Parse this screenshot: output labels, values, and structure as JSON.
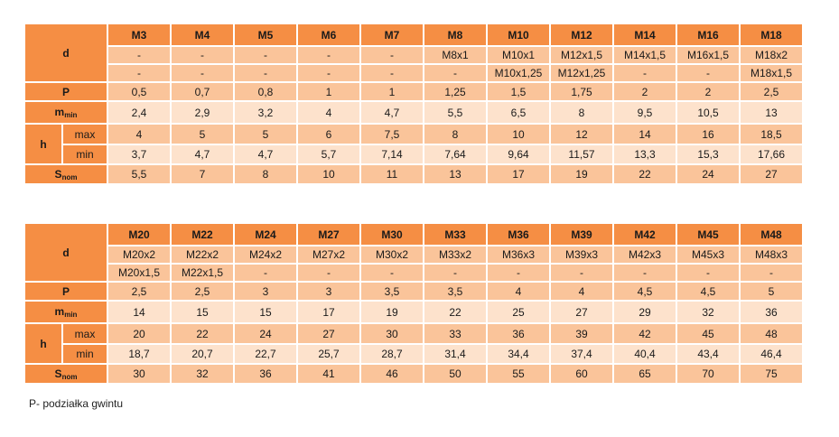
{
  "table1": {
    "labels": {
      "d": "d",
      "P": "P",
      "m": "m",
      "m_sub": "min",
      "h": "h",
      "h_max": "max",
      "h_min": "min",
      "s": "S",
      "s_sub": "nom"
    },
    "sizes": [
      "M3",
      "M4",
      "M5",
      "M6",
      "M7",
      "M8",
      "M10",
      "M12",
      "M14",
      "M16",
      "M18"
    ],
    "fine1": [
      "-",
      "-",
      "-",
      "-",
      "-",
      "M8x1",
      "M10x1",
      "M12x1,5",
      "M14x1,5",
      "M16x1,5",
      "M18x2"
    ],
    "fine2": [
      "-",
      "-",
      "-",
      "-",
      "-",
      "-",
      "M10x1,25",
      "M12x1,25",
      "-",
      "-",
      "M18x1,5"
    ],
    "P": [
      "0,5",
      "0,7",
      "0,8",
      "1",
      "1",
      "1,25",
      "1,5",
      "1,75",
      "2",
      "2",
      "2,5"
    ],
    "m_min": [
      "2,4",
      "2,9",
      "3,2",
      "4",
      "4,7",
      "5,5",
      "6,5",
      "8",
      "9,5",
      "10,5",
      "13"
    ],
    "h_max": [
      "4",
      "5",
      "5",
      "6",
      "7,5",
      "8",
      "10",
      "12",
      "14",
      "16",
      "18,5"
    ],
    "h_min": [
      "3,7",
      "4,7",
      "4,7",
      "5,7",
      "7,14",
      "7,64",
      "9,64",
      "11,57",
      "13,3",
      "15,3",
      "17,66"
    ],
    "s_nom": [
      "5,5",
      "7",
      "8",
      "10",
      "11",
      "13",
      "17",
      "19",
      "22",
      "24",
      "27"
    ]
  },
  "table2": {
    "labels": {
      "d": "d",
      "P": "P",
      "m": "m",
      "m_sub": "min",
      "h": "h",
      "h_max": "max",
      "h_min": "min",
      "s": "S",
      "s_sub": "nom"
    },
    "sizes": [
      "M20",
      "M22",
      "M24",
      "M27",
      "M30",
      "M33",
      "M36",
      "M39",
      "M42",
      "M45",
      "M48"
    ],
    "fine1": [
      "M20x2",
      "M22x2",
      "M24x2",
      "M27x2",
      "M30x2",
      "M33x2",
      "M36x3",
      "M39x3",
      "M42x3",
      "M45x3",
      "M48x3"
    ],
    "fine2": [
      "M20x1,5",
      "M22x1,5",
      "-",
      "-",
      "-",
      "-",
      "-",
      "-",
      "-",
      "-",
      "-"
    ],
    "P": [
      "2,5",
      "2,5",
      "3",
      "3",
      "3,5",
      "3,5",
      "4",
      "4",
      "4,5",
      "4,5",
      "5"
    ],
    "m_min": [
      "14",
      "15",
      "15",
      "17",
      "19",
      "22",
      "25",
      "27",
      "29",
      "32",
      "36"
    ],
    "h_max": [
      "20",
      "22",
      "24",
      "27",
      "30",
      "33",
      "36",
      "39",
      "42",
      "45",
      "48"
    ],
    "h_min": [
      "18,7",
      "20,7",
      "22,7",
      "25,7",
      "28,7",
      "31,4",
      "34,4",
      "37,4",
      "40,4",
      "43,4",
      "46,4"
    ],
    "s_nom": [
      "30",
      "32",
      "36",
      "41",
      "46",
      "50",
      "55",
      "60",
      "65",
      "70",
      "75"
    ]
  },
  "note": "P- podziałka gwintu"
}
